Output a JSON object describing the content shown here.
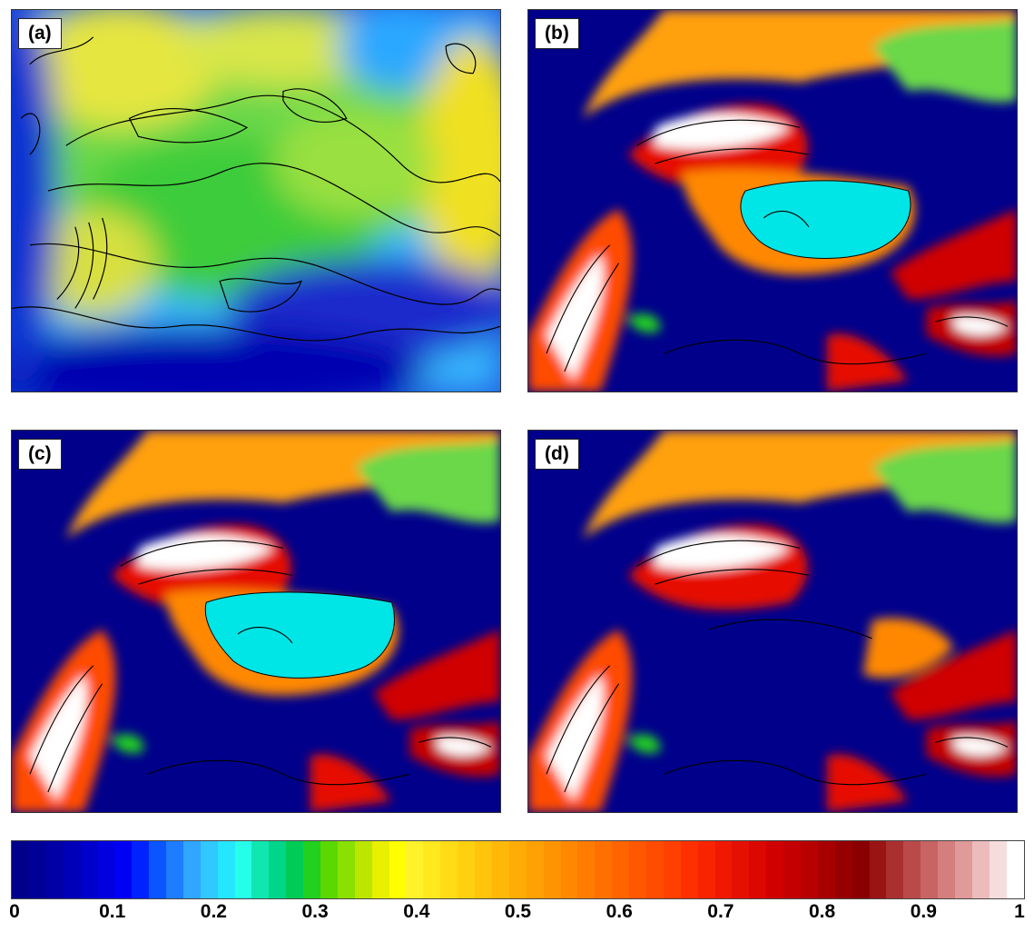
{
  "panels": [
    {
      "id": "a",
      "label": "(a)"
    },
    {
      "id": "b",
      "label": "(b)"
    },
    {
      "id": "c",
      "label": "(c)"
    },
    {
      "id": "d",
      "label": "(d)"
    }
  ],
  "colorbar": {
    "min": 0,
    "max": 1,
    "ticks": [
      "0",
      "0.1",
      "0.2",
      "0.3",
      "0.4",
      "0.5",
      "0.6",
      "0.7",
      "0.8",
      "0.9",
      "1"
    ],
    "colors": [
      "#00008b",
      "#000096",
      "#0000a6",
      "#0000b8",
      "#0000cc",
      "#0000e0",
      "#0000f5",
      "#0022ff",
      "#0a55ff",
      "#1e7dff",
      "#30a6ff",
      "#30c8ff",
      "#25e6ff",
      "#25ffea",
      "#10e6b0",
      "#00d68a",
      "#00cc55",
      "#22d020",
      "#5ad800",
      "#8ae000",
      "#bce600",
      "#e8f000",
      "#ffff00",
      "#fff22a",
      "#ffe81e",
      "#ffdc16",
      "#ffd010",
      "#ffc40c",
      "#ffb808",
      "#ffac06",
      "#ffa004",
      "#ff9402",
      "#ff8800",
      "#ff7c00",
      "#ff7000",
      "#ff6400",
      "#ff5800",
      "#ff4c00",
      "#ff4000",
      "#ff3000",
      "#f82400",
      "#f01800",
      "#e61000",
      "#dc0800",
      "#d00000",
      "#c40000",
      "#b80000",
      "#a80000",
      "#960000",
      "#8a0000",
      "#9a1414",
      "#aa3030",
      "#ba4a4a",
      "#c86464",
      "#d47e7e",
      "#e09a9a",
      "#ecbcbc",
      "#f6dcdc",
      "#ffffff"
    ]
  },
  "colors": {
    "ocean": "#00008b",
    "low_plain": "#00e5e5",
    "high_snow": "#ffffff",
    "contour": "#000000"
  }
}
